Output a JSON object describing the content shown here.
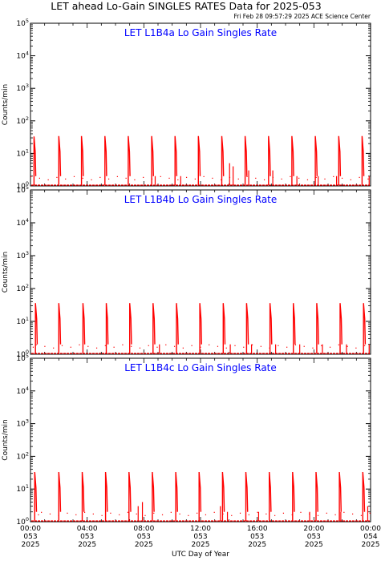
{
  "page": {
    "title": "LET ahead Lo-Gain SINGLES RATES Data for 2025-053",
    "subtitle": "Fri Feb 28 09:57:29 2025 ACE Science Center",
    "xlabel": "UTC Day of Year"
  },
  "colors": {
    "data": "#ff0000",
    "panel_title": "#0000ff",
    "axes": "#000000"
  },
  "chart_data": [
    {
      "type": "line",
      "title": "LET L1B4a Lo Gain Singles Rate",
      "ylabel": "Counts/min",
      "yscale": "log",
      "ylim": [
        1,
        100000
      ],
      "xlim": [
        0,
        24
      ],
      "x_unit": "hours UTC, 2025-053",
      "series": [
        {
          "peaks": [
            {
              "x": 0.25,
              "y": 33
            },
            {
              "x": 2.0,
              "y": 34
            },
            {
              "x": 3.6,
              "y": 34
            },
            {
              "x": 5.25,
              "y": 34
            },
            {
              "x": 6.9,
              "y": 34
            },
            {
              "x": 8.55,
              "y": 34
            },
            {
              "x": 10.2,
              "y": 34
            },
            {
              "x": 11.85,
              "y": 34
            },
            {
              "x": 13.5,
              "y": 34
            },
            {
              "x": 15.15,
              "y": 34
            },
            {
              "x": 16.8,
              "y": 34
            },
            {
              "x": 18.45,
              "y": 34
            },
            {
              "x": 20.1,
              "y": 34
            },
            {
              "x": 21.75,
              "y": 34
            },
            {
              "x": 23.4,
              "y": 34
            }
          ],
          "spikes": [
            {
              "x": 14.05,
              "y": 5
            },
            {
              "x": 14.3,
              "y": 4
            },
            {
              "x": 15.4,
              "y": 3
            },
            {
              "x": 17.1,
              "y": 3
            },
            {
              "x": 18.8,
              "y": 2
            },
            {
              "x": 20.3,
              "y": 2
            },
            {
              "x": 21.6,
              "y": 2
            },
            {
              "x": 23.9,
              "y": 2
            },
            {
              "x": 8.8,
              "y": 2
            },
            {
              "x": 10.6,
              "y": 2
            }
          ]
        }
      ]
    },
    {
      "type": "line",
      "title": "LET L1B4b Lo Gain Singles Rate",
      "ylabel": "Counts/min",
      "yscale": "log",
      "ylim": [
        1,
        100000
      ],
      "xlim": [
        0,
        24
      ],
      "x_unit": "hours UTC, 2025-053",
      "series": [
        {
          "peaks": [
            {
              "x": 0.35,
              "y": 36
            },
            {
              "x": 2.0,
              "y": 36
            },
            {
              "x": 3.7,
              "y": 36
            },
            {
              "x": 5.35,
              "y": 36
            },
            {
              "x": 7.0,
              "y": 36
            },
            {
              "x": 8.65,
              "y": 36
            },
            {
              "x": 10.3,
              "y": 36
            },
            {
              "x": 11.95,
              "y": 36
            },
            {
              "x": 13.6,
              "y": 36
            },
            {
              "x": 15.25,
              "y": 36
            },
            {
              "x": 16.9,
              "y": 36
            },
            {
              "x": 18.55,
              "y": 36
            },
            {
              "x": 20.2,
              "y": 36
            },
            {
              "x": 21.85,
              "y": 36
            },
            {
              "x": 23.5,
              "y": 36
            }
          ],
          "spikes": [
            {
              "x": 14.1,
              "y": 2
            },
            {
              "x": 15.6,
              "y": 2
            },
            {
              "x": 17.3,
              "y": 2
            },
            {
              "x": 19.0,
              "y": 2
            },
            {
              "x": 20.6,
              "y": 2
            },
            {
              "x": 22.3,
              "y": 2
            },
            {
              "x": 23.9,
              "y": 2
            },
            {
              "x": 9.1,
              "y": 2
            }
          ]
        }
      ]
    },
    {
      "type": "line",
      "title": "LET L1B4c Lo Gain Singles Rate",
      "ylabel": "Counts/min",
      "yscale": "log",
      "ylim": [
        1,
        100000
      ],
      "xlim": [
        0,
        24
      ],
      "x_unit": "hours UTC, 2025-053",
      "series": [
        {
          "peaks": [
            {
              "x": 0.3,
              "y": 33
            },
            {
              "x": 2.0,
              "y": 33
            },
            {
              "x": 3.65,
              "y": 33
            },
            {
              "x": 5.3,
              "y": 33
            },
            {
              "x": 6.95,
              "y": 33
            },
            {
              "x": 8.6,
              "y": 33
            },
            {
              "x": 10.25,
              "y": 33
            },
            {
              "x": 11.9,
              "y": 33
            },
            {
              "x": 13.55,
              "y": 33
            },
            {
              "x": 15.2,
              "y": 33
            },
            {
              "x": 16.85,
              "y": 33
            },
            {
              "x": 18.5,
              "y": 33
            },
            {
              "x": 20.15,
              "y": 33
            },
            {
              "x": 21.8,
              "y": 33
            },
            {
              "x": 23.45,
              "y": 33
            }
          ],
          "spikes": [
            {
              "x": 7.6,
              "y": 3
            },
            {
              "x": 7.9,
              "y": 4
            },
            {
              "x": 13.4,
              "y": 3
            },
            {
              "x": 13.9,
              "y": 2
            },
            {
              "x": 16.1,
              "y": 2
            },
            {
              "x": 19.7,
              "y": 2
            },
            {
              "x": 21.9,
              "y": 2
            },
            {
              "x": 23.8,
              "y": 3
            }
          ]
        }
      ]
    }
  ],
  "x_ticks": [
    {
      "time": "00:00",
      "doy": "053",
      "year": "2025",
      "x": 0
    },
    {
      "time": "04:00",
      "doy": "053",
      "year": "2025",
      "x": 4
    },
    {
      "time": "08:00",
      "doy": "053",
      "year": "2025",
      "x": 8
    },
    {
      "time": "12:00",
      "doy": "053",
      "year": "2025",
      "x": 12
    },
    {
      "time": "16:00",
      "doy": "053",
      "year": "2025",
      "x": 16
    },
    {
      "time": "20:00",
      "doy": "053",
      "year": "2025",
      "x": 20
    },
    {
      "time": "00:00",
      "doy": "054",
      "year": "2025",
      "x": 24
    }
  ]
}
